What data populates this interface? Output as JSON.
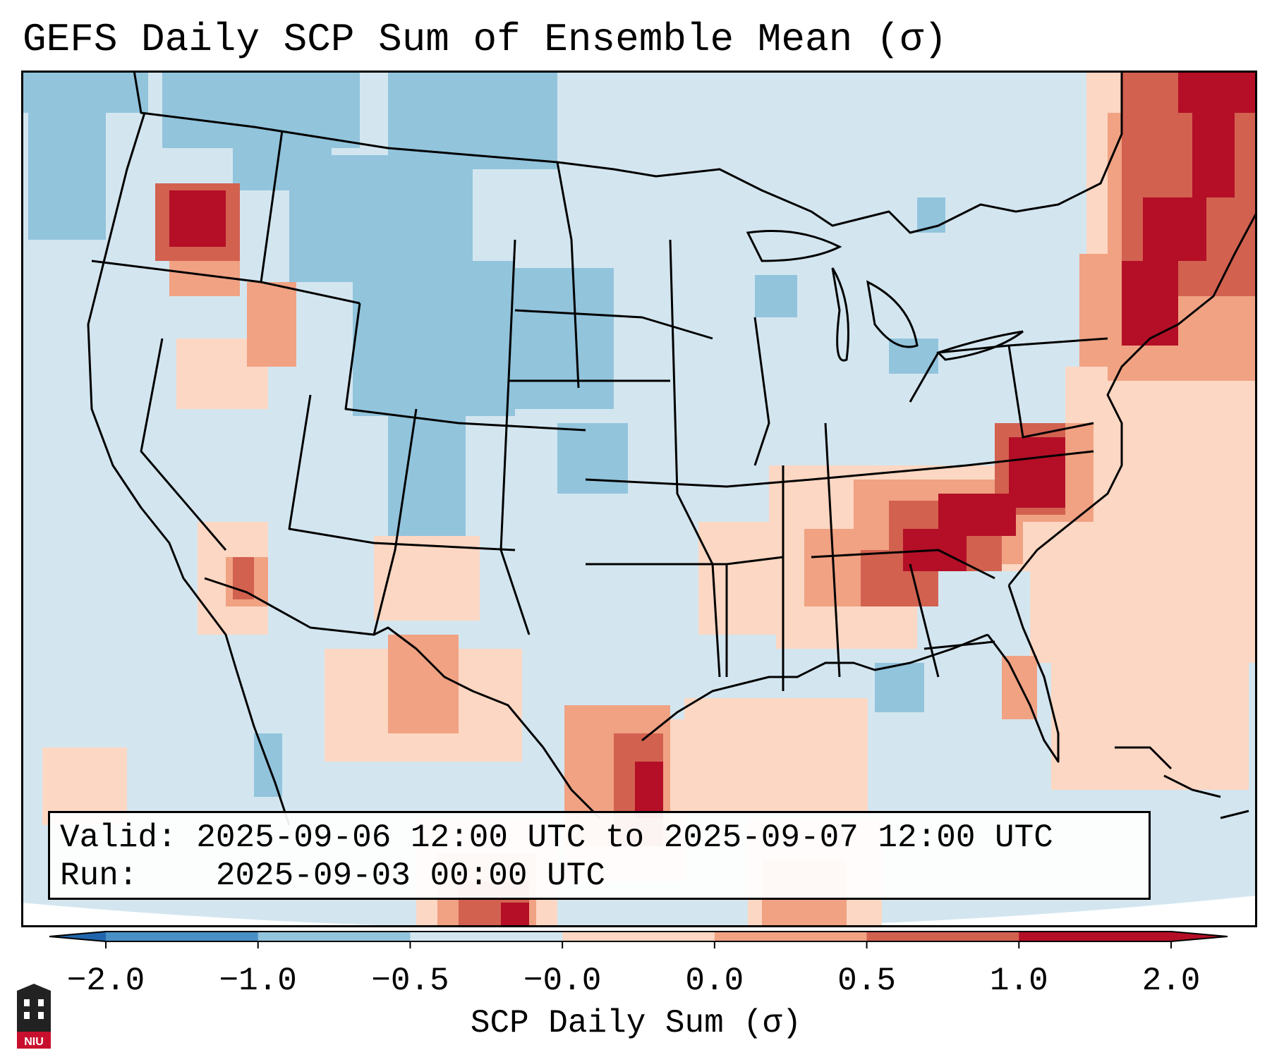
{
  "title": "GEFS Daily SCP Sum of Ensemble Mean (σ)",
  "info": {
    "valid_label": "Valid:",
    "valid_value": "2025-09-06 12:00 UTC to 2025-09-07 12:00 UTC",
    "run_label": "Run:",
    "run_value": "2025-09-03 00:00 UTC"
  },
  "colorbar": {
    "label": "SCP Daily Sum (σ)",
    "ticks": [
      "−2.0",
      "−1.0",
      "−0.5",
      "−0.0",
      "0.0",
      "0.5",
      "1.0",
      "2.0"
    ],
    "colors": [
      "#4a8fc4",
      "#92c4dc",
      "#d3e6f0",
      "#f7f7f7",
      "#fcd7c3",
      "#f0a283",
      "#d26150",
      "#b40f26"
    ]
  },
  "logo": {
    "text": "NIU"
  },
  "colors": {
    "ocean": "#d3e6f0",
    "blue_light": "#92c4dc",
    "blue_mid": "#4a8fc4",
    "red_light": "#fcd7c3",
    "red_mid": "#f0a283",
    "red_strong": "#d26150",
    "red_dark": "#b40f26"
  }
}
